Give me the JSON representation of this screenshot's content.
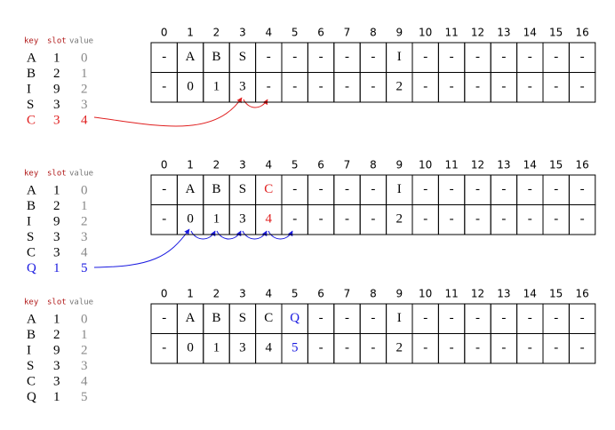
{
  "panels": [
    {
      "legend_header": {
        "key": "key",
        "slot": "slot",
        "value": "value"
      },
      "rows": [
        {
          "key": "A",
          "slot": "1",
          "value": "0"
        },
        {
          "key": "B",
          "slot": "2",
          "value": "1"
        },
        {
          "key": "I",
          "slot": "9",
          "value": "2"
        },
        {
          "key": "S",
          "slot": "3",
          "value": "3"
        },
        {
          "key": "C",
          "slot": "3",
          "value": "4",
          "color": "#e02020"
        }
      ],
      "columns": [
        "0",
        "1",
        "2",
        "3",
        "4",
        "5",
        "6",
        "7",
        "8",
        "9",
        "10",
        "11",
        "12",
        "13",
        "14",
        "15",
        "16"
      ],
      "keys": [
        "-",
        "A",
        "B",
        "S",
        "-",
        "-",
        "-",
        "-",
        "-",
        "I",
        "-",
        "-",
        "-",
        "-",
        "-",
        "-",
        "-"
      ],
      "slots": [
        "-",
        "0",
        "1",
        "3",
        "-",
        "-",
        "-",
        "-",
        "-",
        "2",
        "-",
        "-",
        "-",
        "-",
        "-",
        "-",
        "-"
      ]
    },
    {
      "legend_header": {
        "key": "key",
        "slot": "slot",
        "value": "value"
      },
      "rows": [
        {
          "key": "A",
          "slot": "1",
          "value": "0"
        },
        {
          "key": "B",
          "slot": "2",
          "value": "1"
        },
        {
          "key": "I",
          "slot": "9",
          "value": "2"
        },
        {
          "key": "S",
          "slot": "3",
          "value": "3"
        },
        {
          "key": "C",
          "slot": "3",
          "value": "4"
        },
        {
          "key": "Q",
          "slot": "1",
          "value": "5",
          "color": "#1a1ae0"
        }
      ],
      "columns": [
        "0",
        "1",
        "2",
        "3",
        "4",
        "5",
        "6",
        "7",
        "8",
        "9",
        "10",
        "11",
        "12",
        "13",
        "14",
        "15",
        "16"
      ],
      "keys": [
        "-",
        "A",
        "B",
        "S",
        "C",
        "-",
        "-",
        "-",
        "-",
        "I",
        "-",
        "-",
        "-",
        "-",
        "-",
        "-",
        "-"
      ],
      "slots": [
        "-",
        "0",
        "1",
        "3",
        "4",
        "-",
        "-",
        "-",
        "-",
        "2",
        "-",
        "-",
        "-",
        "-",
        "-",
        "-",
        "-"
      ],
      "highlight": {
        "column": 4,
        "color": "#e02020"
      }
    },
    {
      "legend_header": {
        "key": "key",
        "slot": "slot",
        "value": "value"
      },
      "rows": [
        {
          "key": "A",
          "slot": "1",
          "value": "0"
        },
        {
          "key": "B",
          "slot": "2",
          "value": "1"
        },
        {
          "key": "I",
          "slot": "9",
          "value": "2"
        },
        {
          "key": "S",
          "slot": "3",
          "value": "3"
        },
        {
          "key": "C",
          "slot": "3",
          "value": "4"
        },
        {
          "key": "Q",
          "slot": "1",
          "value": "5"
        }
      ],
      "columns": [
        "0",
        "1",
        "2",
        "3",
        "4",
        "5",
        "6",
        "7",
        "8",
        "9",
        "10",
        "11",
        "12",
        "13",
        "14",
        "15",
        "16"
      ],
      "keys": [
        "-",
        "A",
        "B",
        "S",
        "C",
        "Q",
        "-",
        "-",
        "-",
        "I",
        "-",
        "-",
        "-",
        "-",
        "-",
        "-",
        "-"
      ],
      "slots": [
        "-",
        "0",
        "1",
        "3",
        "4",
        "5",
        "-",
        "-",
        "-",
        "2",
        "-",
        "-",
        "-",
        "-",
        "-",
        "-",
        "-"
      ],
      "highlight": {
        "column": 5,
        "color": "#1a1ae0"
      }
    }
  ]
}
